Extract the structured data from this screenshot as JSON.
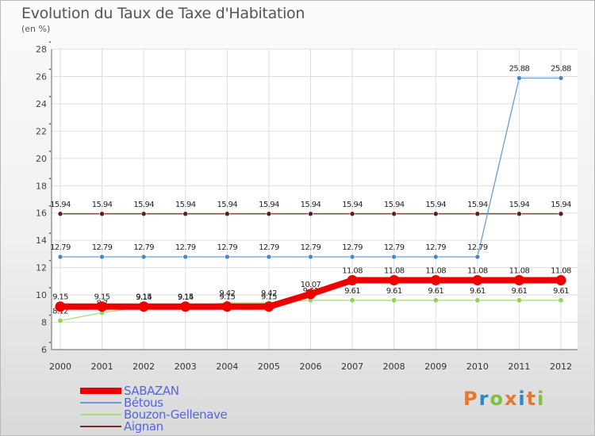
{
  "header": {
    "title": "Evolution du Taux de Taxe d'Habitation",
    "subtitle": "(en %)"
  },
  "chart_data": {
    "type": "line",
    "title": "Evolution du Taux de Taxe d'Habitation",
    "ylabel": "(en %)",
    "xlabel": "",
    "categories": [
      "2000",
      "2001",
      "2002",
      "2003",
      "2004",
      "2005",
      "2006",
      "2007",
      "2008",
      "2009",
      "2010",
      "2011",
      "2012"
    ],
    "ylim": [
      6,
      28
    ],
    "yticks": [
      6,
      8,
      10,
      12,
      14,
      16,
      18,
      20,
      22,
      24,
      26,
      28
    ],
    "grid": true,
    "legend_position": "bottom-left",
    "series": [
      {
        "name": "Aignan",
        "color": "#7a2a2a",
        "values": [
          15.94,
          15.94,
          15.94,
          15.94,
          15.94,
          15.94,
          15.94,
          15.94,
          15.94,
          15.94,
          15.94,
          15.94,
          15.94
        ],
        "labels": [
          "15.94",
          "15.94",
          "15.94",
          "15.94",
          "15.94",
          "15.94",
          "15.94",
          "15.94",
          "15.94",
          "15.94",
          "15.94",
          "15.94",
          "15.94"
        ]
      },
      {
        "name": "Bétous",
        "color": "#6a9ccf",
        "values": [
          12.79,
          12.79,
          12.79,
          12.79,
          12.79,
          12.79,
          12.79,
          12.79,
          12.79,
          12.79,
          12.79,
          25.88,
          25.88
        ],
        "labels": [
          "12.79",
          "12.79",
          "12.79",
          "12.79",
          "12.79",
          "12.79",
          "12.79",
          "12.79",
          "12.79",
          "12.79",
          "12.79",
          "25.88",
          "25.88"
        ]
      },
      {
        "name": "Bouzon-Gellenave",
        "color": "#a6e07a",
        "values": [
          8.12,
          8.7,
          9.14,
          9.14,
          9.42,
          9.42,
          9.61,
          9.61,
          9.61,
          9.61,
          9.61,
          9.61,
          9.61
        ],
        "labels": [
          "8.12",
          "8.7",
          "9.14",
          "9.14",
          "9.42",
          "9.42",
          "9.61",
          "9.61",
          "9.61",
          "9.61",
          "9.61",
          "9.61",
          "9.61"
        ]
      },
      {
        "name": "SABAZAN",
        "color": "#ee0000",
        "values": [
          9.15,
          9.15,
          9.15,
          9.15,
          9.15,
          9.15,
          10.07,
          11.08,
          11.08,
          11.08,
          11.08,
          11.08,
          11.08
        ],
        "labels": [
          "9.15",
          "9.15",
          "9.15",
          "9.15",
          "9.15",
          "9.15",
          "10.07",
          "11.08",
          "11.08",
          "11.08",
          "11.08",
          "11.08",
          "11.08"
        ]
      }
    ]
  },
  "legend": {
    "items": [
      {
        "label": "SABAZAN",
        "color": "#ee0000"
      },
      {
        "label": "Bétous",
        "color": "#6a9ccf"
      },
      {
        "label": "Bouzon-Gellenave",
        "color": "#a6e07a"
      },
      {
        "label": "Aignan",
        "color": "#7a2a2a"
      }
    ]
  },
  "logo": {
    "text": "Proxiti",
    "colors": [
      "#e8772e",
      "#2a86c9",
      "#7cc142",
      "#e8772e",
      "#2a86c9",
      "#e8772e",
      "#7cc142"
    ]
  }
}
